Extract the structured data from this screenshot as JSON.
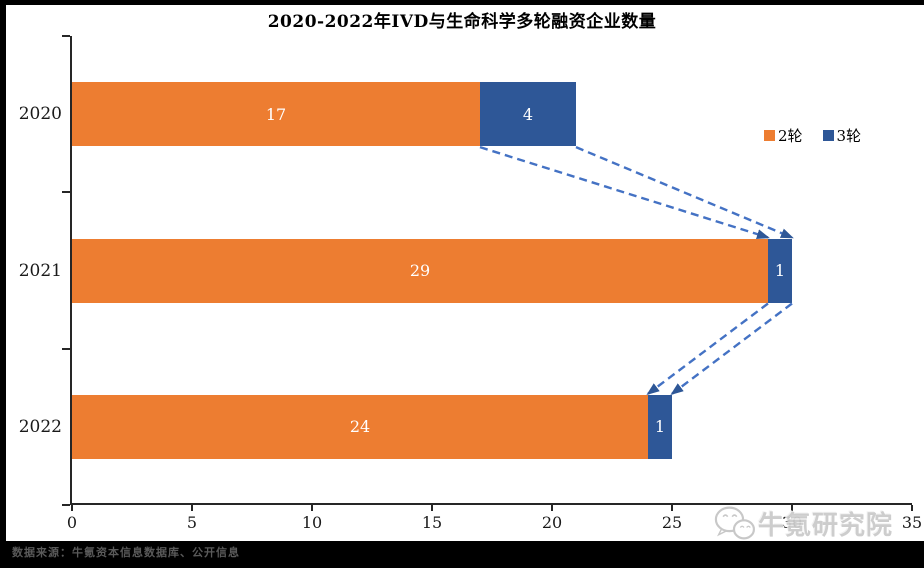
{
  "title": "2020-2022年IVD与生命科学多轮融资企业数量",
  "chart_data": {
    "type": "bar",
    "orientation": "horizontal-stacked",
    "title": "2020-2022年IVD与生命科学多轮融资企业数量",
    "categories": [
      "2020",
      "2021",
      "2022"
    ],
    "series": [
      {
        "name": "2轮",
        "color": "#ED7D31",
        "values": [
          17,
          29,
          24
        ]
      },
      {
        "name": "3轮",
        "color": "#2E5797",
        "values": [
          4,
          1,
          1
        ]
      }
    ],
    "totals": [
      21,
      30,
      25
    ],
    "xlim": [
      0,
      35
    ],
    "xticks": [
      0,
      5,
      10,
      15,
      20,
      25,
      30,
      35
    ],
    "grid": false,
    "legend_position": "right-top",
    "connector_arrows": true,
    "connector_line_color": "#4472C4",
    "connector_arrowhead_color": "#2E5797",
    "bar_label_color": "#ffffff"
  },
  "watermark": {
    "text": "牛氪研究院",
    "icon": "wechat-logo"
  },
  "footer": {
    "source_text": "数据来源：牛氪资本信息数据库、公开信息"
  }
}
